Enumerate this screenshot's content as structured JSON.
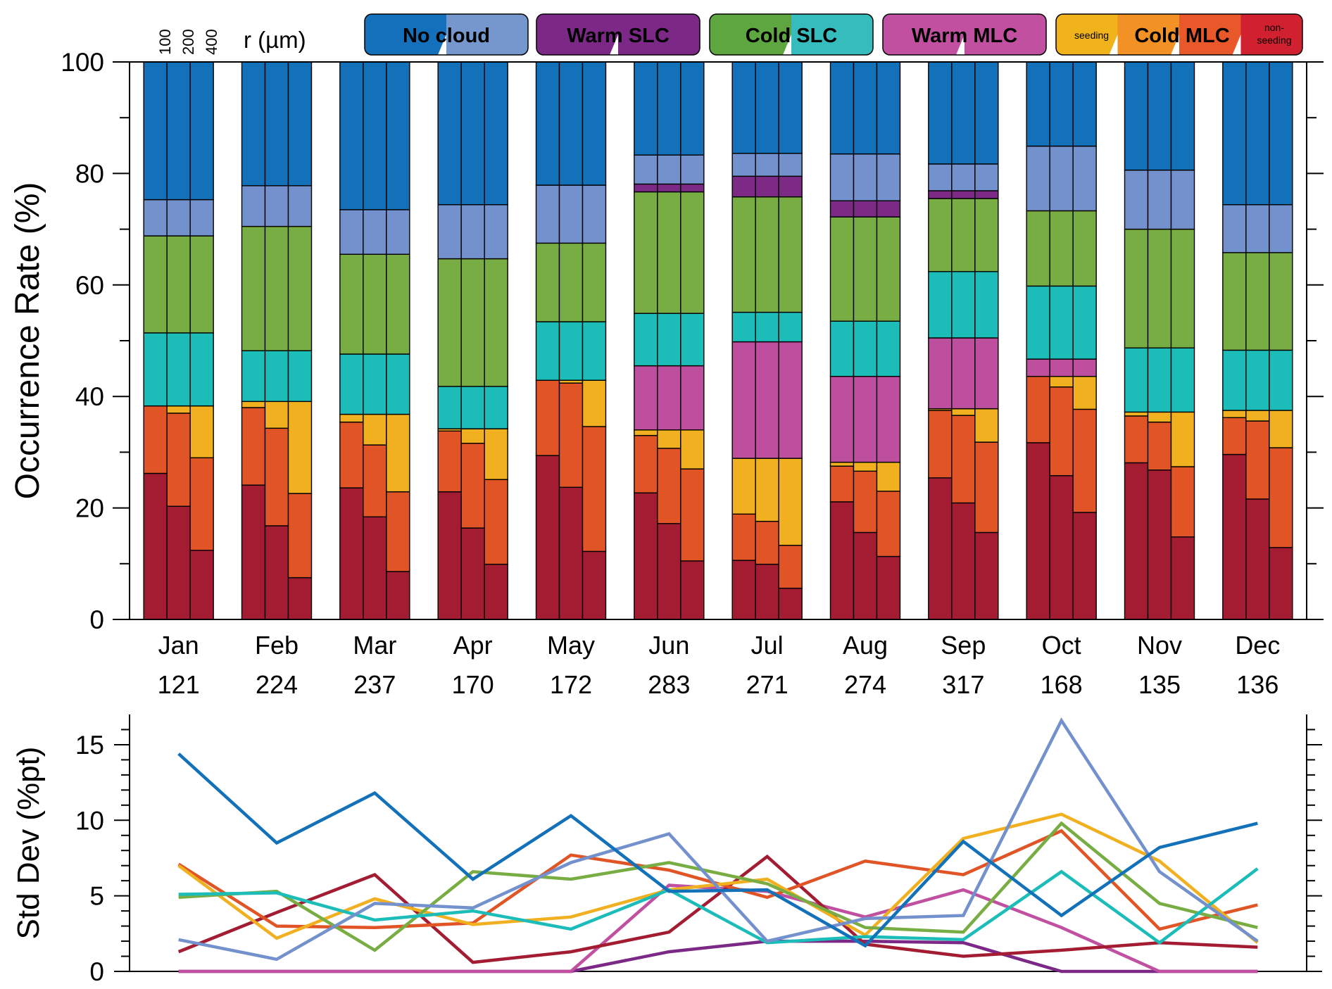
{
  "legend": {
    "radius_label": "r (µm)",
    "radius_ticks": [
      "100",
      "200",
      "400"
    ],
    "items": [
      {
        "label": "No cloud",
        "colors": [
          "#1470ba",
          "#7597cd"
        ]
      },
      {
        "label": "Warm SLC",
        "colors": [
          "#7c2886",
          "#7c2886"
        ]
      },
      {
        "label": "Cold SLC",
        "colors": [
          "#5ea63f",
          "#36bcbd"
        ]
      },
      {
        "label": "Warm MLC",
        "colors": [
          "#c150a0",
          "#c150a0"
        ]
      },
      {
        "label": "Cold MLC",
        "colors": [
          "#f0b31c",
          "#f29124",
          "#e8582a",
          "#d12030"
        ],
        "left_note": "seeding",
        "right_note_1": "non-",
        "right_note_2": "seeding"
      }
    ]
  },
  "chart_data": [
    {
      "type": "stacked-bar",
      "ylabel": "Occurrence Rate (%)",
      "ylim": [
        0,
        100
      ],
      "yticks": [
        0,
        20,
        40,
        60,
        80,
        100
      ],
      "months": [
        "Jan",
        "Feb",
        "Mar",
        "Apr",
        "May",
        "Jun",
        "Jul",
        "Aug",
        "Sep",
        "Oct",
        "Nov",
        "Dec"
      ],
      "sample_counts": [
        "121",
        "224",
        "237",
        "170",
        "172",
        "283",
        "271",
        "274",
        "317",
        "168",
        "135",
        "136"
      ],
      "radii": [
        "100",
        "200",
        "400"
      ],
      "segment_order": [
        "Cold MLC non-seeding",
        "Cold MLC mixed",
        "Cold MLC seeding",
        "Warm MLC",
        "Cold SLC (cyan)",
        "Cold SLC (green)",
        "Warm SLC",
        "No cloud (light)",
        "No cloud (dark)"
      ],
      "segment_colors": [
        "#a31c32",
        "#e05426",
        "#f0b020",
        "#be4f9e",
        "#1cbcb9",
        "#78ad43",
        "#7d2a86",
        "#7391cc",
        "#1371b9"
      ],
      "boundaries": [
        [
          [
            26.2,
            38.3,
            38.3,
            38.3,
            51.4,
            68.8,
            68.8,
            75.3
          ],
          [
            20.3,
            37.0,
            38.3,
            38.3,
            51.4,
            68.8,
            68.8,
            75.3
          ],
          [
            12.4,
            29.0,
            38.3,
            38.3,
            51.4,
            68.8,
            68.8,
            75.3
          ]
        ],
        [
          [
            24.1,
            38.0,
            39.1,
            39.1,
            48.2,
            70.5,
            70.5,
            77.8
          ],
          [
            16.8,
            34.3,
            39.1,
            39.1,
            48.2,
            70.5,
            70.5,
            77.8
          ],
          [
            7.5,
            22.6,
            39.1,
            39.1,
            48.2,
            70.5,
            70.5,
            77.8
          ]
        ],
        [
          [
            23.6,
            35.4,
            36.8,
            36.8,
            47.6,
            65.5,
            65.5,
            73.5
          ],
          [
            18.4,
            31.3,
            36.8,
            36.8,
            47.6,
            65.5,
            65.5,
            73.5
          ],
          [
            8.6,
            22.9,
            36.8,
            36.8,
            47.6,
            65.5,
            65.5,
            73.5
          ]
        ],
        [
          [
            22.9,
            33.8,
            34.2,
            34.2,
            41.8,
            64.7,
            64.7,
            74.4
          ],
          [
            16.4,
            31.6,
            34.2,
            34.2,
            41.8,
            64.7,
            64.7,
            74.4
          ],
          [
            9.9,
            25.1,
            34.2,
            34.2,
            41.8,
            64.7,
            64.7,
            74.4
          ]
        ],
        [
          [
            29.4,
            42.9,
            42.9,
            42.9,
            53.4,
            67.5,
            67.5,
            77.9
          ],
          [
            23.7,
            42.4,
            42.9,
            42.9,
            53.4,
            67.5,
            67.5,
            77.9
          ],
          [
            12.2,
            34.6,
            42.9,
            42.9,
            53.4,
            67.5,
            67.5,
            77.9
          ]
        ],
        [
          [
            22.7,
            33.0,
            34.0,
            45.5,
            54.9,
            76.7,
            78.1,
            83.3
          ],
          [
            17.2,
            30.7,
            34.0,
            45.5,
            54.9,
            76.7,
            78.1,
            83.3
          ],
          [
            10.5,
            27.0,
            34.0,
            45.5,
            54.9,
            76.7,
            78.1,
            83.3
          ]
        ],
        [
          [
            10.6,
            18.9,
            28.9,
            49.8,
            55.1,
            75.8,
            79.5,
            83.6
          ],
          [
            9.9,
            17.6,
            28.9,
            49.8,
            55.1,
            75.8,
            79.5,
            83.6
          ],
          [
            5.6,
            13.3,
            28.9,
            49.8,
            55.1,
            75.8,
            79.5,
            83.6
          ]
        ],
        [
          [
            21.1,
            27.5,
            28.2,
            43.6,
            53.5,
            72.2,
            75.1,
            83.5
          ],
          [
            15.6,
            26.6,
            28.2,
            43.6,
            53.5,
            72.2,
            75.1,
            83.5
          ],
          [
            11.3,
            23.0,
            28.2,
            43.6,
            53.5,
            72.2,
            75.1,
            83.5
          ]
        ],
        [
          [
            25.4,
            37.5,
            37.8,
            50.5,
            62.4,
            75.5,
            76.9,
            81.7
          ],
          [
            20.9,
            36.6,
            37.8,
            50.5,
            62.4,
            75.5,
            76.9,
            81.7
          ],
          [
            15.6,
            31.8,
            37.8,
            50.5,
            62.4,
            75.5,
            76.9,
            81.7
          ]
        ],
        [
          [
            31.7,
            43.6,
            43.6,
            46.7,
            59.8,
            73.3,
            73.3,
            84.9
          ],
          [
            25.8,
            41.7,
            43.6,
            46.7,
            59.8,
            73.3,
            73.3,
            84.9
          ],
          [
            19.2,
            37.7,
            43.6,
            46.7,
            59.8,
            73.3,
            73.3,
            84.9
          ]
        ],
        [
          [
            28.1,
            36.5,
            37.2,
            37.2,
            48.7,
            70.0,
            70.0,
            80.6
          ],
          [
            26.8,
            35.4,
            37.2,
            37.2,
            48.7,
            70.0,
            70.0,
            80.6
          ],
          [
            14.8,
            27.4,
            37.2,
            37.2,
            48.7,
            70.0,
            70.0,
            80.6
          ]
        ],
        [
          [
            29.6,
            36.2,
            37.5,
            37.5,
            48.3,
            65.8,
            65.8,
            74.4
          ],
          [
            21.6,
            35.6,
            37.5,
            37.5,
            48.3,
            65.8,
            65.8,
            74.4
          ],
          [
            12.9,
            30.8,
            37.5,
            37.5,
            48.3,
            65.8,
            65.8,
            74.4
          ]
        ]
      ]
    },
    {
      "type": "line",
      "ylabel": "Std Dev (%pt)",
      "ylim": [
        0,
        17
      ],
      "yticks": [
        0,
        5,
        10,
        15
      ],
      "categories": [
        "Jan",
        "Feb",
        "Mar",
        "Apr",
        "May",
        "Jun",
        "Jul",
        "Aug",
        "Sep",
        "Oct",
        "Nov",
        "Dec"
      ],
      "series": [
        {
          "name": "Warm SLC",
          "color": "#7c2886",
          "values": [
            0,
            0,
            0,
            0,
            0,
            1.3,
            2.0,
            2.0,
            1.9,
            0,
            0,
            0
          ]
        },
        {
          "name": "Warm MLC",
          "color": "#c150a0",
          "values": [
            0,
            0,
            0,
            0,
            0,
            5.7,
            5.3,
            3.6,
            5.4,
            2.9,
            0,
            0
          ]
        },
        {
          "name": "Cold MLC non-seeding",
          "color": "#a31c32",
          "values": [
            1.3,
            3.9,
            6.4,
            0.6,
            1.3,
            2.6,
            7.6,
            1.8,
            1.0,
            1.4,
            1.9,
            1.6
          ]
        },
        {
          "name": "Cold MLC mixed",
          "color": "#e05426",
          "values": [
            7.1,
            3.0,
            2.9,
            3.2,
            7.7,
            6.7,
            4.9,
            7.3,
            6.4,
            9.3,
            2.8,
            4.4
          ]
        },
        {
          "name": "Cold MLC seeding",
          "color": "#f0b020",
          "values": [
            7.0,
            2.2,
            4.8,
            3.1,
            3.6,
            5.4,
            6.1,
            2.4,
            8.8,
            10.4,
            7.3,
            1.9
          ]
        },
        {
          "name": "Cold SLC (green)",
          "color": "#78ad43",
          "values": [
            4.9,
            5.3,
            1.4,
            6.6,
            6.1,
            7.2,
            5.8,
            2.9,
            2.6,
            9.8,
            4.5,
            2.9
          ]
        },
        {
          "name": "Cold SLC (cyan)",
          "color": "#1cbcb9",
          "values": [
            5.1,
            5.2,
            3.4,
            4.0,
            2.8,
            5.4,
            1.9,
            2.3,
            2.1,
            6.6,
            1.9,
            6.8
          ]
        },
        {
          "name": "No cloud (light)",
          "color": "#7391cc",
          "values": [
            2.1,
            0.8,
            4.5,
            4.2,
            7.2,
            9.1,
            2.0,
            3.5,
            3.7,
            16.6,
            6.6,
            2.0
          ]
        },
        {
          "name": "No cloud (dark)",
          "color": "#1371b9",
          "values": [
            14.4,
            8.5,
            11.8,
            6.1,
            10.3,
            5.3,
            5.4,
            1.7,
            8.6,
            3.7,
            8.2,
            9.8
          ]
        }
      ]
    }
  ]
}
